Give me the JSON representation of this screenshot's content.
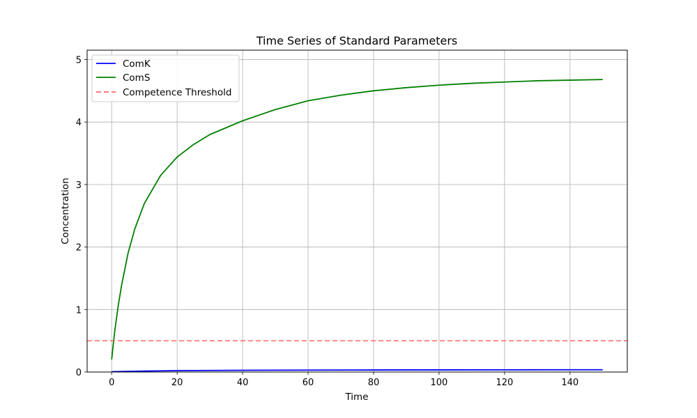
{
  "chart_data": {
    "type": "line",
    "title": "Time Series of Standard Parameters",
    "xlabel": "Time",
    "ylabel": "Concentration",
    "xlim": [
      -7.5,
      157.5
    ],
    "ylim": [
      0,
      5.15
    ],
    "xticks": [
      0,
      20,
      40,
      60,
      80,
      100,
      120,
      140
    ],
    "yticks": [
      0,
      1,
      2,
      3,
      4,
      5
    ],
    "grid": true,
    "legend_position": "top-left",
    "series": [
      {
        "name": "ComK",
        "color": "#0000ff",
        "line_style": "solid",
        "x": [
          0,
          10,
          20,
          40,
          60,
          80,
          100,
          120,
          140,
          150
        ],
        "y": [
          0.005,
          0.015,
          0.022,
          0.028,
          0.031,
          0.033,
          0.034,
          0.035,
          0.036,
          0.036
        ]
      },
      {
        "name": "ComS",
        "color": "#008000",
        "line_style": "solid",
        "x": [
          0,
          0.5,
          1,
          2,
          3,
          5,
          7,
          10,
          15,
          20,
          25,
          30,
          40,
          50,
          60,
          70,
          80,
          90,
          100,
          110,
          120,
          130,
          140,
          150
        ],
        "y": [
          0.2,
          0.45,
          0.68,
          1.06,
          1.38,
          1.9,
          2.28,
          2.7,
          3.15,
          3.44,
          3.64,
          3.8,
          4.02,
          4.2,
          4.34,
          4.43,
          4.5,
          4.55,
          4.59,
          4.62,
          4.64,
          4.66,
          4.67,
          4.68
        ]
      },
      {
        "name": "Competence Threshold",
        "color": "#ff6666",
        "line_style": "dashed",
        "y_constant": 0.5
      }
    ]
  }
}
